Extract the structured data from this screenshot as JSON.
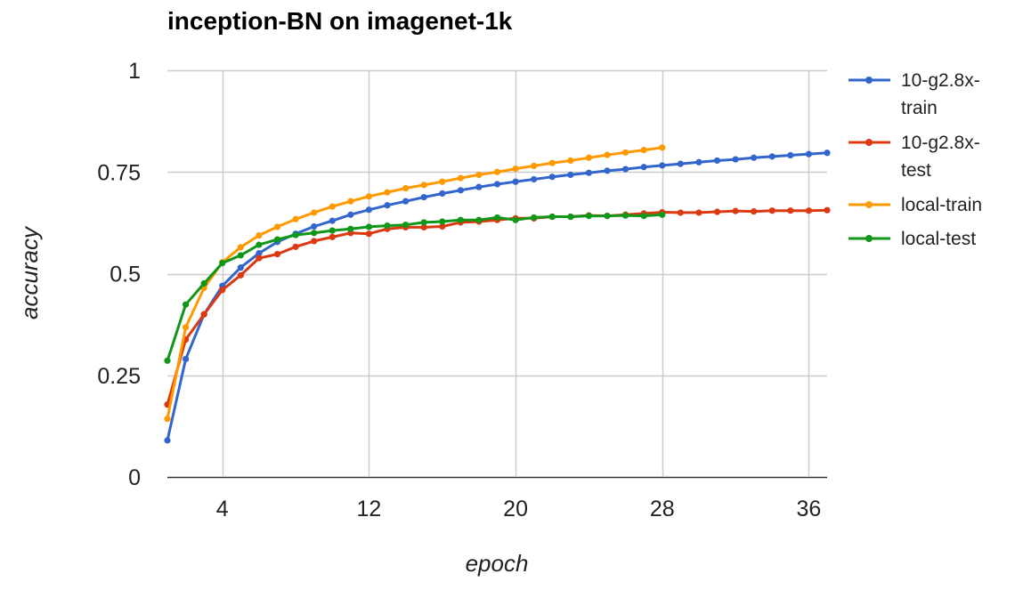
{
  "chart_data": {
    "type": "line",
    "title": "inception-BN on imagenet-1k",
    "xlabel": "epoch",
    "ylabel": "accuracy",
    "xlim": [
      1,
      37
    ],
    "ylim": [
      0,
      1
    ],
    "xticks": [
      4,
      12,
      20,
      28,
      36
    ],
    "xtick_labels": [
      "4",
      "12",
      "20",
      "28",
      "36"
    ],
    "yticks": [
      0,
      0.25,
      0.5,
      0.75,
      1
    ],
    "ytick_labels": [
      "0",
      "0.25",
      "0.5",
      "0.75",
      "1"
    ],
    "grid": true,
    "legend_position": "right",
    "series": [
      {
        "name": "10-g2.8x-train",
        "legend_lines": [
          "10-g2.8x-",
          "train"
        ],
        "color": "#3366cc",
        "x": [
          1,
          2,
          3,
          4,
          5,
          6,
          7,
          8,
          9,
          10,
          11,
          12,
          13,
          14,
          15,
          16,
          17,
          18,
          19,
          20,
          21,
          22,
          23,
          24,
          25,
          26,
          27,
          28,
          29,
          30,
          31,
          32,
          33,
          34,
          35,
          36,
          37
        ],
        "values": [
          0.09,
          0.29,
          0.4,
          0.47,
          0.515,
          0.55,
          0.578,
          0.598,
          0.616,
          0.63,
          0.645,
          0.657,
          0.668,
          0.678,
          0.688,
          0.697,
          0.705,
          0.713,
          0.72,
          0.726,
          0.732,
          0.738,
          0.743,
          0.748,
          0.753,
          0.757,
          0.762,
          0.766,
          0.77,
          0.774,
          0.778,
          0.781,
          0.785,
          0.788,
          0.791,
          0.794,
          0.797
        ]
      },
      {
        "name": "10-g2.8x-test",
        "legend_lines": [
          "10-g2.8x-",
          "test"
        ],
        "color": "#dc3912",
        "x": [
          1,
          2,
          3,
          4,
          5,
          6,
          7,
          8,
          9,
          10,
          11,
          12,
          13,
          14,
          15,
          16,
          17,
          18,
          19,
          20,
          21,
          22,
          23,
          24,
          25,
          26,
          27,
          28,
          29,
          30,
          31,
          32,
          33,
          34,
          35,
          36,
          37
        ],
        "values": [
          0.178,
          0.338,
          0.4,
          0.46,
          0.496,
          0.538,
          0.548,
          0.566,
          0.58,
          0.59,
          0.6,
          0.598,
          0.61,
          0.614,
          0.614,
          0.616,
          0.626,
          0.628,
          0.632,
          0.636,
          0.636,
          0.64,
          0.64,
          0.643,
          0.642,
          0.645,
          0.648,
          0.651,
          0.65,
          0.65,
          0.652,
          0.654,
          0.653,
          0.655,
          0.655,
          0.655,
          0.656
        ]
      },
      {
        "name": "local-train",
        "legend_lines": [
          "local-train"
        ],
        "color": "#ff9900",
        "x": [
          1,
          2,
          3,
          4,
          5,
          6,
          7,
          8,
          9,
          10,
          11,
          12,
          13,
          14,
          15,
          16,
          17,
          18,
          19,
          20,
          21,
          22,
          23,
          24,
          25,
          26,
          27,
          28
        ],
        "values": [
          0.143,
          0.368,
          0.465,
          0.528,
          0.565,
          0.594,
          0.615,
          0.634,
          0.65,
          0.665,
          0.678,
          0.69,
          0.7,
          0.71,
          0.718,
          0.726,
          0.735,
          0.743,
          0.75,
          0.758,
          0.765,
          0.772,
          0.778,
          0.785,
          0.792,
          0.798,
          0.804,
          0.81
        ]
      },
      {
        "name": "local-test",
        "legend_lines": [
          "local-test"
        ],
        "color": "#109618",
        "x": [
          1,
          2,
          3,
          4,
          5,
          6,
          7,
          8,
          9,
          10,
          11,
          12,
          13,
          14,
          15,
          16,
          17,
          18,
          19,
          20,
          21,
          22,
          23,
          24,
          25,
          26,
          27,
          28
        ],
        "values": [
          0.286,
          0.424,
          0.476,
          0.526,
          0.545,
          0.571,
          0.584,
          0.595,
          0.6,
          0.606,
          0.61,
          0.615,
          0.618,
          0.62,
          0.626,
          0.628,
          0.632,
          0.632,
          0.638,
          0.632,
          0.638,
          0.64,
          0.64,
          0.642,
          0.642,
          0.643,
          0.642,
          0.645
        ]
      }
    ]
  }
}
